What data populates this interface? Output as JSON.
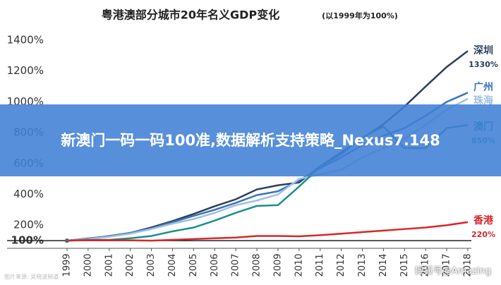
{
  "chart_data": {
    "type": "line",
    "title": "粤港澳部分城市20年名义GDP变化",
    "subtitle": "(以1999年为100%)",
    "x": [
      1999,
      2000,
      2001,
      2002,
      2003,
      2004,
      2005,
      2006,
      2007,
      2008,
      2009,
      2010,
      2011,
      2012,
      2013,
      2014,
      2015,
      2016,
      2017,
      2018
    ],
    "xlim": [
      1999,
      2018
    ],
    "xticks": [
      1999,
      2000,
      2001,
      2002,
      2003,
      2004,
      2005,
      2006,
      2007,
      2008,
      2009,
      2010,
      2011,
      2012,
      2013,
      2014,
      2015,
      2016,
      2017,
      2018
    ],
    "ylim": [
      50,
      1400
    ],
    "yticks": [
      {
        "value": 100,
        "label": "100%"
      },
      {
        "value": 200,
        "label": "200%"
      },
      {
        "value": 400,
        "label": "400%"
      },
      {
        "value": 600,
        "label": "600%"
      },
      {
        "value": 800,
        "label": "800%"
      },
      {
        "value": 1000,
        "label": "1000%"
      },
      {
        "value": 1200,
        "label": "1200%"
      },
      {
        "value": 1400,
        "label": "1400%"
      }
    ],
    "series": [
      {
        "name": "深圳",
        "color": "#2c3e5c",
        "values": [
          100,
          114,
          127,
          150,
          186,
          227,
          273,
          323,
          368,
          432,
          459,
          477,
          582,
          673,
          764,
          855,
          970,
          1100,
          1227,
          1330
        ],
        "value_labels": [
          null,
          null,
          null,
          null,
          null,
          null,
          null,
          null,
          null,
          null,
          null,
          null,
          null,
          null,
          null,
          null,
          null,
          null,
          null,
          "1330%"
        ]
      },
      {
        "name": "广州",
        "color": "#3d74b8",
        "values": [
          100,
          112,
          130,
          150,
          180,
          220,
          260,
          300,
          345,
          395,
          420,
          490,
          570,
          640,
          720,
          780,
          830,
          910,
          1000,
          1060
        ]
      },
      {
        "name": "珠海",
        "color": "#9fc0e0",
        "values": [
          100,
          110,
          125,
          145,
          175,
          210,
          240,
          280,
          330,
          360,
          400,
          500,
          530,
          560,
          640,
          700,
          760,
          850,
          950,
          1020
        ]
      },
      {
        "name": "澳门",
        "color": "#1b8f8a",
        "values": [
          100,
          105,
          105,
          115,
          130,
          160,
          185,
          230,
          280,
          325,
          330,
          450,
          580,
          660,
          770,
          840,
          700,
          700,
          830,
          850
        ],
        "value_labels": [
          null,
          null,
          null,
          null,
          null,
          null,
          null,
          null,
          null,
          null,
          null,
          null,
          null,
          null,
          null,
          null,
          null,
          null,
          null,
          "850%"
        ]
      },
      {
        "name": "香港",
        "color": "#d9262b",
        "values": [
          100,
          103,
          103,
          102,
          100,
          105,
          110,
          115,
          120,
          130,
          130,
          128,
          135,
          145,
          155,
          165,
          175,
          185,
          200,
          220
        ],
        "value_labels": [
          null,
          null,
          null,
          null,
          null,
          null,
          null,
          null,
          null,
          null,
          null,
          null,
          null,
          null,
          null,
          null,
          null,
          null,
          null,
          "220%"
        ]
      }
    ]
  },
  "overlay": {
    "banner": "新澳门一码一码100准,数据解析支持策略_Nexus7.148",
    "watermark": "搜狐号@Amazing",
    "source": "图片来源: 吴晓波频道"
  }
}
